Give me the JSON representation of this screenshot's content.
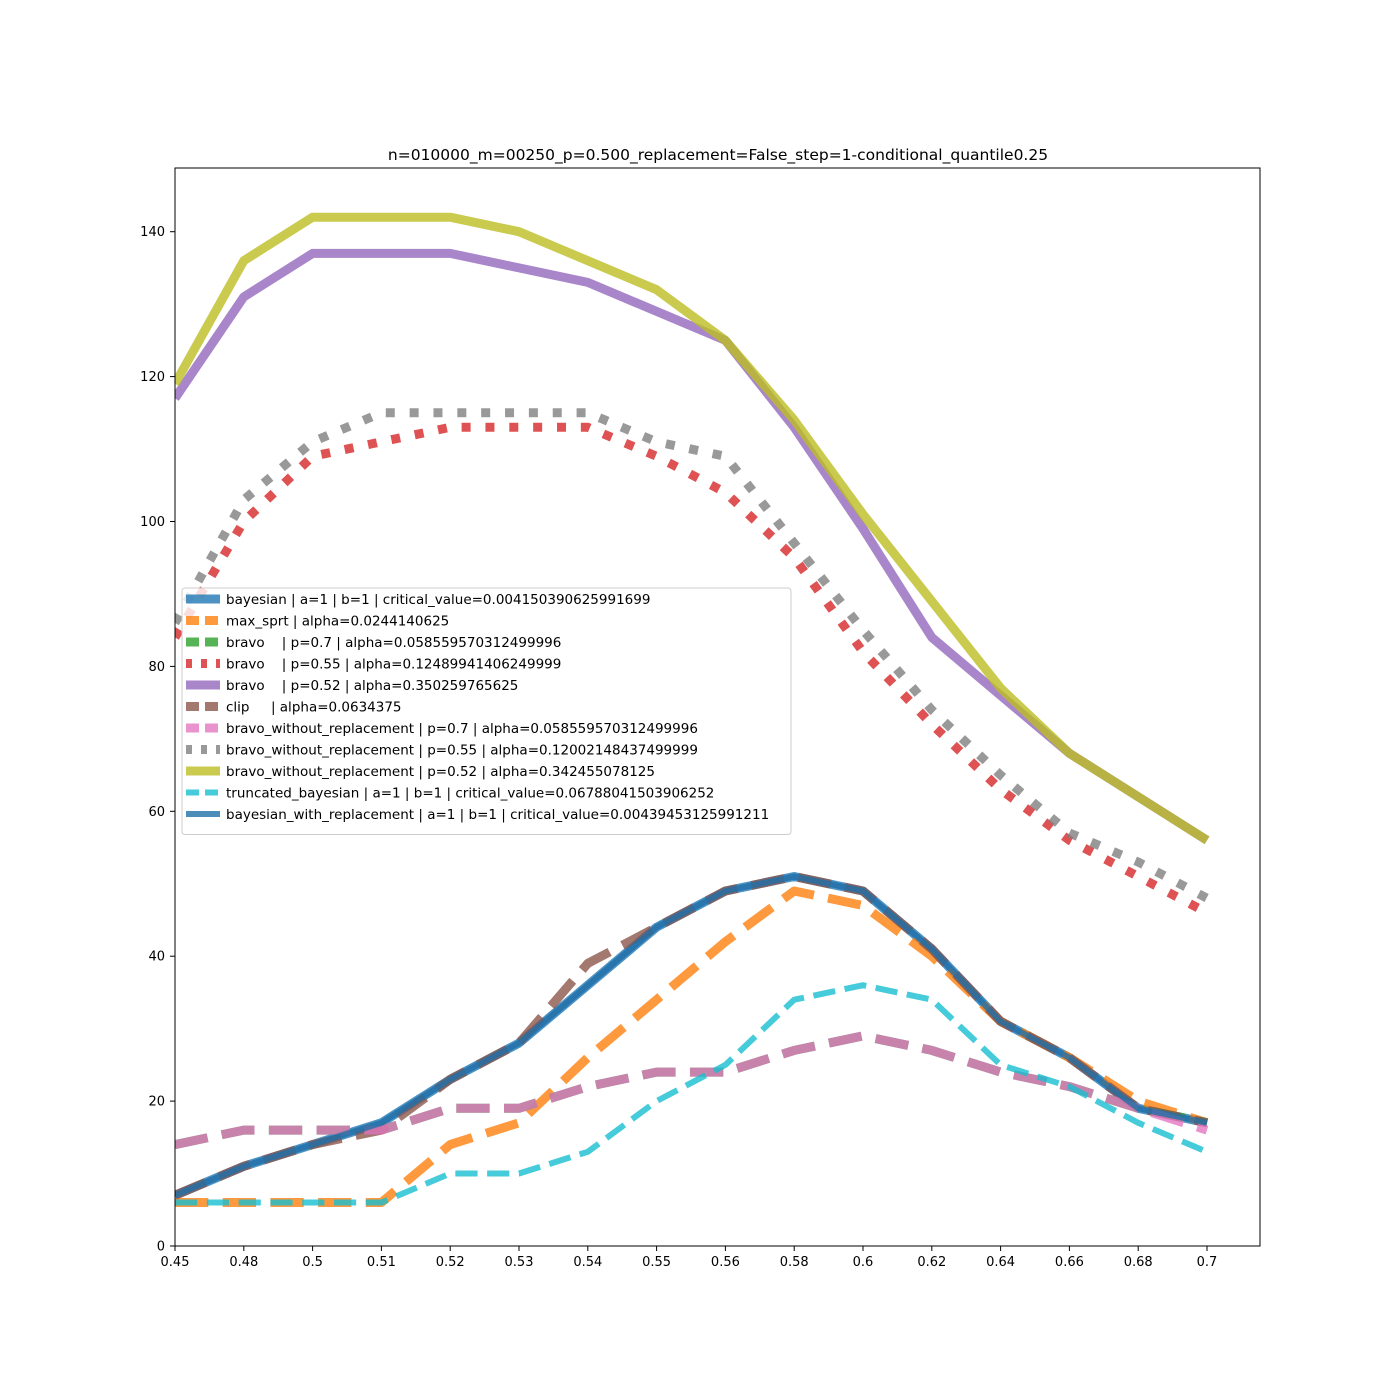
{
  "chart_data": {
    "type": "line",
    "title": "n=010000_m=00250_p=0.500_replacement=False_step=1-conditional_quantile0.25",
    "xlabel": "",
    "ylabel": "",
    "x_ticks": [
      "0.45",
      "0.48",
      "0.5",
      "0.51",
      "0.52",
      "0.53",
      "0.54",
      "0.55",
      "0.56",
      "0.58",
      "0.6",
      "0.62",
      "0.64",
      "0.66",
      "0.68",
      "0.7"
    ],
    "y_ticks": [
      0,
      20,
      40,
      60,
      80,
      100,
      120,
      140
    ],
    "ylim": [
      0,
      149
    ],
    "grid": false,
    "legend_position": "center-left",
    "series": [
      {
        "name": "bayesian | a=1 | b=1 | critical_value=0.004150390625991699",
        "color": "#1f77b4",
        "style": "solid",
        "width": 9,
        "values": [
          7,
          11,
          14,
          17,
          23,
          28,
          36,
          44,
          49,
          51,
          49,
          41,
          31,
          26,
          19,
          17
        ]
      },
      {
        "name": "max_sprt | alpha=0.0244140625",
        "color": "#ff7f0e",
        "style": "dash",
        "width": 9,
        "values": [
          6,
          6,
          6,
          6,
          14,
          17,
          26,
          34,
          42,
          49,
          47,
          40,
          31,
          26,
          20,
          17
        ]
      },
      {
        "name": "bravo    | p=0.7 | alpha=0.058559570312499996",
        "color": "#2ca02c",
        "style": "dash",
        "width": 9,
        "values": [
          14,
          16,
          16,
          16,
          19,
          19,
          22,
          24,
          24,
          27,
          29,
          27,
          24,
          22,
          19,
          17
        ]
      },
      {
        "name": "bravo    | p=0.55 | alpha=0.12489941406249999",
        "color": "#d62728",
        "style": "dot",
        "width": 9,
        "values": [
          84,
          100,
          109,
          111,
          113,
          113,
          113,
          109,
          104,
          95,
          82,
          72,
          63,
          56,
          51,
          46
        ]
      },
      {
        "name": "bravo    | p=0.52 | alpha=0.350259765625",
        "color": "#9467bd",
        "style": "solid",
        "width": 9,
        "values": [
          117,
          131,
          137,
          137,
          137,
          135,
          133,
          129,
          125,
          113,
          99,
          84,
          76,
          68,
          62,
          56
        ]
      },
      {
        "name": "clip     | alpha=0.0634375",
        "color": "#8c564b",
        "style": "dash",
        "width": 9,
        "values": [
          7,
          11,
          14,
          16,
          23,
          28,
          39,
          44,
          49,
          51,
          49,
          41,
          31,
          26,
          19,
          17
        ]
      },
      {
        "name": "bravo_without_replacement | p=0.7 | alpha=0.058559570312499996",
        "color": "#e377c2",
        "style": "dash",
        "width": 9,
        "values": [
          14,
          16,
          16,
          16,
          19,
          19,
          22,
          24,
          24,
          27,
          29,
          27,
          24,
          22,
          19,
          16
        ]
      },
      {
        "name": "bravo_without_replacement | p=0.55 | alpha=0.12002148437499999",
        "color": "#7f7f7f",
        "style": "dot",
        "width": 9,
        "values": [
          86,
          103,
          111,
          115,
          115,
          115,
          115,
          111,
          109,
          97,
          85,
          74,
          65,
          57,
          53,
          48
        ]
      },
      {
        "name": "bravo_without_replacement | p=0.52 | alpha=0.342455078125",
        "color": "#bcbd22",
        "style": "solid",
        "width": 9,
        "values": [
          119,
          136,
          142,
          142,
          142,
          140,
          136,
          132,
          125,
          114,
          101,
          89,
          77,
          68,
          62,
          56
        ]
      },
      {
        "name": "truncated_bayesian | a=1 | b=1 | critical_value=0.06788041503906252",
        "color": "#17becf",
        "style": "dash",
        "width": 6,
        "values": [
          6,
          6,
          6,
          6,
          10,
          10,
          13,
          20,
          25,
          34,
          36,
          34,
          25,
          22,
          17,
          13
        ]
      },
      {
        "name": "bayesian_with_replacement | a=1 | b=1 | critical_value=0.00439453125991211",
        "color": "#1f6fa8",
        "style": "solid",
        "width": 6,
        "values": [
          7,
          11,
          14,
          17,
          23,
          28,
          36,
          44,
          49,
          51,
          49,
          41,
          31,
          26,
          19,
          17
        ]
      }
    ]
  }
}
